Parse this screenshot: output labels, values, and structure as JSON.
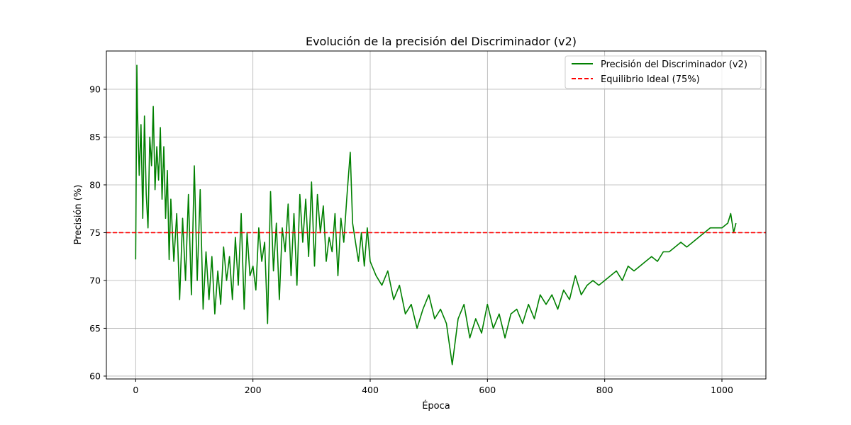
{
  "chart_data": {
    "type": "line",
    "title": "Evolución de la precisión del Discriminador (v2)",
    "xlabel": "Época",
    "ylabel": "Precisión (%)",
    "xlim": [
      -50,
      1075
    ],
    "ylim": [
      59.7,
      94.0
    ],
    "xticks": [
      0,
      200,
      400,
      600,
      800,
      1000
    ],
    "yticks": [
      60,
      65,
      70,
      75,
      80,
      85,
      90
    ],
    "grid": true,
    "legend_position": "top-right",
    "series": [
      {
        "name": "Precisión del Discriminador (v2)",
        "color": "#008000",
        "style": "solid",
        "x": [
          0,
          2,
          3,
          6,
          9,
          12,
          15,
          18,
          21,
          24,
          27,
          30,
          33,
          36,
          39,
          42,
          45,
          48,
          51,
          54,
          57,
          60,
          65,
          70,
          75,
          80,
          85,
          90,
          95,
          100,
          105,
          110,
          115,
          120,
          125,
          130,
          135,
          140,
          145,
          150,
          155,
          160,
          165,
          170,
          175,
          180,
          185,
          190,
          195,
          200,
          205,
          210,
          215,
          220,
          225,
          230,
          235,
          240,
          245,
          250,
          255,
          260,
          265,
          270,
          275,
          280,
          285,
          290,
          295,
          300,
          305,
          310,
          315,
          320,
          325,
          330,
          335,
          340,
          345,
          350,
          355,
          360,
          363,
          366,
          370,
          375,
          380,
          385,
          390,
          395,
          400,
          410,
          420,
          430,
          440,
          450,
          460,
          470,
          480,
          490,
          500,
          510,
          520,
          530,
          540,
          550,
          560,
          570,
          580,
          590,
          600,
          610,
          620,
          630,
          640,
          650,
          660,
          670,
          680,
          690,
          700,
          710,
          720,
          730,
          740,
          750,
          760,
          770,
          780,
          790,
          800,
          810,
          820,
          830,
          840,
          850,
          860,
          870,
          880,
          890,
          900,
          910,
          920,
          930,
          940,
          950,
          960,
          970,
          980,
          990,
          1000,
          1010,
          1015,
          1020,
          1024
        ],
        "y": [
          72.2,
          92.5,
          88.0,
          81.0,
          86.3,
          76.5,
          87.2,
          79.0,
          75.5,
          85.0,
          82.0,
          88.2,
          79.5,
          84.0,
          80.5,
          86.0,
          78.5,
          84.0,
          76.5,
          81.5,
          72.2,
          78.5,
          72.0,
          77.0,
          68.0,
          76.5,
          70.0,
          79.0,
          68.5,
          82.0,
          70.0,
          79.5,
          67.0,
          73.0,
          68.0,
          72.5,
          66.5,
          71.0,
          67.5,
          73.5,
          70.0,
          72.5,
          68.0,
          74.5,
          69.5,
          77.0,
          67.0,
          75.0,
          70.5,
          71.5,
          69.0,
          75.5,
          72.0,
          74.0,
          65.5,
          79.3,
          71.0,
          76.0,
          68.0,
          75.5,
          73.0,
          78.0,
          70.5,
          77.0,
          69.5,
          79.0,
          74.0,
          78.5,
          72.5,
          80.3,
          71.5,
          79.0,
          75.0,
          77.8,
          72.0,
          74.5,
          73.0,
          77.0,
          70.5,
          76.5,
          74.0,
          78.5,
          81.0,
          83.4,
          76.0,
          74.0,
          72.0,
          75.0,
          71.5,
          75.5,
          72.0,
          70.5,
          69.5,
          71.0,
          68.0,
          69.5,
          66.5,
          67.5,
          65.0,
          67.0,
          68.5,
          66.0,
          67.0,
          65.5,
          61.2,
          66.0,
          67.5,
          64.0,
          66.0,
          64.5,
          67.5,
          65.0,
          66.5,
          64.0,
          66.5,
          67.0,
          65.5,
          67.5,
          66.0,
          68.5,
          67.5,
          68.5,
          67.0,
          69.0,
          68.0,
          70.5,
          68.5,
          69.5,
          70.0,
          69.5,
          70.0,
          70.5,
          71.0,
          70.0,
          71.5,
          71.0,
          71.5,
          72.0,
          72.5,
          72.0,
          73.0,
          73.0,
          73.5,
          74.0,
          73.5,
          74.0,
          74.5,
          75.0,
          75.5,
          75.5,
          75.5,
          76.0,
          77.0,
          75.0,
          76.0
        ]
      },
      {
        "name": "Equilibrio Ideal (75%)",
        "color": "#ff0000",
        "style": "dashed",
        "y_constant": 75
      }
    ]
  }
}
